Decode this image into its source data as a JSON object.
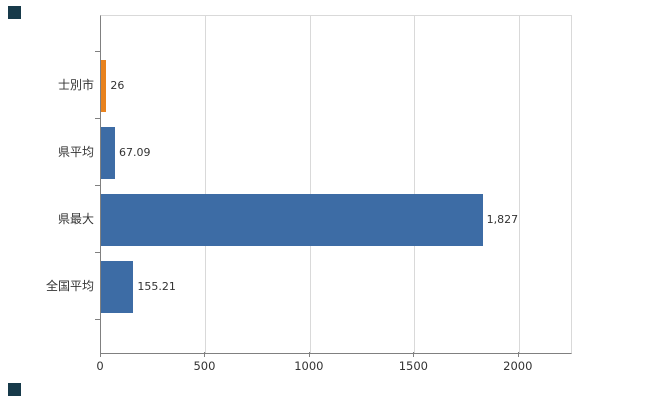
{
  "chart_data": {
    "type": "bar",
    "orientation": "horizontal",
    "title": "",
    "xlabel": "",
    "ylabel": "",
    "categories": [
      "士別市",
      "県平均",
      "県最大",
      "全国平均"
    ],
    "values": [
      26,
      67.09,
      1827,
      155.21
    ],
    "value_labels": [
      "26",
      "67.09",
      "1,827",
      "155.21"
    ],
    "bar_colors": [
      "#e8821e",
      "#3d6ca5",
      "#3d6ca5",
      "#3d6ca5"
    ],
    "x_ticks": [
      0,
      500,
      1000,
      1500,
      2000
    ],
    "x_tick_labels": [
      "0",
      "500",
      "1000",
      "1500",
      "2000"
    ],
    "xlim": [
      0,
      2250
    ],
    "grid": true,
    "legend": "none"
  },
  "colors": {
    "background": "#ffffff",
    "grid": "#d9d9d9",
    "axis": "#808080",
    "text": "#333333",
    "accent_orange": "#e8821e",
    "accent_blue": "#3d6ca5",
    "corner_marker": "#173a4a"
  }
}
